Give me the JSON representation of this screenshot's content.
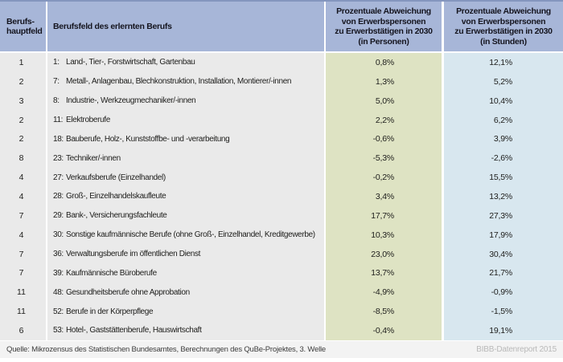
{
  "colors": {
    "top_border": "#8496be",
    "header_blue": "#a7b6d8",
    "row_gray": "#eaeaea",
    "green_col": "#dee3c3",
    "blue_col": "#d8e7ef",
    "footer_gray": "#f3f3f3"
  },
  "table": {
    "header": {
      "col1": "Berufs-\nhauptfeld",
      "col2": "Berufsfeld des erlernten Berufs",
      "col3": "Prozentuale Abweichung\nvon Erwerbspersonen\nzu Erwerbstätigen in 2030\n(in Personen)",
      "col4": "Prozentuale Abweichung\nvon Erwerbspersonen\nzu Erwerbstätigen in 2030\n(in Stunden)"
    },
    "rows": [
      {
        "hauptfeld": "1",
        "code": "1:",
        "label": "Land-, Tier-, Forstwirtschaft, Gartenbau",
        "personen": "0,8%",
        "stunden": "12,1%"
      },
      {
        "hauptfeld": "2",
        "code": "7:",
        "label": "Metall-, Anlagenbau, Blechkonstruktion, Installation, Montierer/-innen",
        "personen": "1,3%",
        "stunden": "5,2%"
      },
      {
        "hauptfeld": "3",
        "code": "8:",
        "label": "Industrie-, Werkzeugmechaniker/-innen",
        "personen": "5,0%",
        "stunden": "10,4%"
      },
      {
        "hauptfeld": "2",
        "code": "11:",
        "label": "Elektroberufe",
        "personen": "2,2%",
        "stunden": "6,2%"
      },
      {
        "hauptfeld": "2",
        "code": "18:",
        "label": "Bauberufe, Holz-, Kunststoffbe- und -verarbeitung",
        "personen": "-0,6%",
        "stunden": "3,9%"
      },
      {
        "hauptfeld": "8",
        "code": "23:",
        "label": "Techniker/-innen",
        "personen": "-5,3%",
        "stunden": "-2,6%"
      },
      {
        "hauptfeld": "4",
        "code": "27:",
        "label": "Verkaufsberufe (Einzelhandel)",
        "personen": "-0,2%",
        "stunden": "15,5%"
      },
      {
        "hauptfeld": "4",
        "code": "28:",
        "label": "Groß-, Einzelhandelskaufleute",
        "personen": "3,4%",
        "stunden": "13,2%"
      },
      {
        "hauptfeld": "7",
        "code": "29:",
        "label": "Bank-, Versicherungsfachleute",
        "personen": "17,7%",
        "stunden": "27,3%"
      },
      {
        "hauptfeld": "4",
        "code": "30:",
        "label": "Sonstige kaufmännische Berufe (ohne Groß-, Einzelhandel, Kreditgewerbe)",
        "personen": "10,3%",
        "stunden": "17,9%"
      },
      {
        "hauptfeld": "7",
        "code": "36:",
        "label": "Verwaltungsberufe im öffentlichen Dienst",
        "personen": "23,0%",
        "stunden": "30,4%"
      },
      {
        "hauptfeld": "7",
        "code": "39:",
        "label": "Kaufmännische Büroberufe",
        "personen": "13,7%",
        "stunden": "21,7%"
      },
      {
        "hauptfeld": "11",
        "code": "48:",
        "label": "Gesundheitsberufe ohne Approbation",
        "personen": "-4,9%",
        "stunden": "-0,9%"
      },
      {
        "hauptfeld": "11",
        "code": "52:",
        "label": "Berufe in der Körperpflege",
        "personen": "-8,5%",
        "stunden": "-1,5%"
      },
      {
        "hauptfeld": "6",
        "code": "53:",
        "label": "Hotel-, Gaststättenberufe, Hauswirtschaft",
        "personen": "-0,4%",
        "stunden": "19,1%"
      }
    ]
  },
  "footer": {
    "source": "Quelle: Mikrozensus des Statistischen Bundesamtes, Berechnungen des QuBe-Projektes, 3. Welle",
    "credit": "BIBB-Datenreport 2015"
  }
}
